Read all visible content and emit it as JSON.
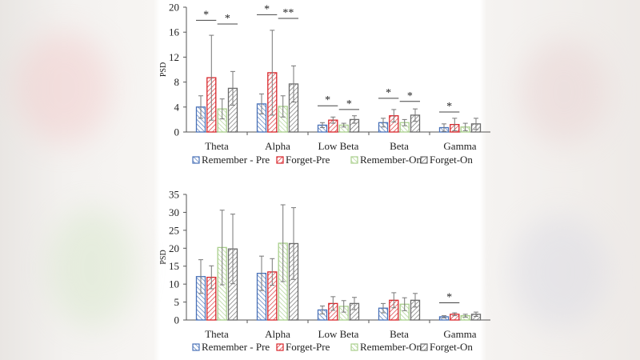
{
  "colors": {
    "Remember - Pre": "#4a72b8",
    "Forget-Pre": "#d8262b",
    "Remember-On": "#a9cf8c",
    "Forget-On": "#6b6b6b",
    "axis": "#555555",
    "error_bar": "#777777"
  },
  "chart_data": [
    {
      "type": "bar",
      "ylabel": "PSD",
      "ylim": [
        0,
        20
      ],
      "yticks": [
        0,
        4,
        8,
        12,
        16,
        20
      ],
      "categories": [
        "Theta",
        "Alpha",
        "Low Beta",
        "Beta",
        "Gamma"
      ],
      "legend": "bottom",
      "series": [
        {
          "name": "Remember - Pre",
          "values": [
            4.0,
            4.5,
            1.1,
            1.5,
            0.7
          ],
          "errors": [
            1.8,
            1.6,
            0.4,
            0.7,
            0.6
          ]
        },
        {
          "name": "Forget-Pre",
          "values": [
            8.7,
            9.5,
            1.9,
            2.6,
            1.2
          ],
          "errors": [
            6.8,
            6.8,
            0.5,
            1.0,
            1.0
          ]
        },
        {
          "name": "Remember-On",
          "values": [
            3.7,
            4.1,
            1.1,
            1.5,
            0.8
          ],
          "errors": [
            1.6,
            1.7,
            0.3,
            0.5,
            0.6
          ]
        },
        {
          "name": "Forget-On",
          "values": [
            7.0,
            7.7,
            2.0,
            2.7,
            1.3
          ],
          "errors": [
            2.7,
            2.9,
            0.6,
            1.0,
            0.9
          ]
        }
      ],
      "significance": [
        {
          "category": "Theta",
          "between": [
            "Remember - Pre",
            "Forget-Pre"
          ],
          "label": "*",
          "level": 17.9
        },
        {
          "category": "Theta",
          "between": [
            "Remember-On",
            "Forget-On"
          ],
          "label": "*",
          "level": 17.3
        },
        {
          "category": "Alpha",
          "between": [
            "Remember - Pre",
            "Forget-Pre"
          ],
          "label": "*",
          "level": 18.8
        },
        {
          "category": "Alpha",
          "between": [
            "Remember-On",
            "Forget-On"
          ],
          "label": "**",
          "level": 18.2
        },
        {
          "category": "Low Beta",
          "between": [
            "Remember - Pre",
            "Forget-Pre"
          ],
          "label": "*",
          "level": 4.2
        },
        {
          "category": "Low Beta",
          "between": [
            "Remember-On",
            "Forget-On"
          ],
          "label": "*",
          "level": 3.6
        },
        {
          "category": "Beta",
          "between": [
            "Remember - Pre",
            "Forget-Pre"
          ],
          "label": "*",
          "level": 5.4
        },
        {
          "category": "Beta",
          "between": [
            "Remember-On",
            "Forget-On"
          ],
          "label": "*",
          "level": 4.9
        },
        {
          "category": "Gamma",
          "between": [
            "Remember - Pre",
            "Forget-Pre"
          ],
          "label": "*",
          "level": 3.2
        }
      ]
    },
    {
      "type": "bar",
      "ylabel": "PSD",
      "ylim": [
        0,
        35
      ],
      "yticks": [
        0,
        5,
        10,
        15,
        20,
        25,
        30,
        35
      ],
      "categories": [
        "Theta",
        "Alpha",
        "Low Beta",
        "Beta",
        "Gamma"
      ],
      "legend": "bottom",
      "series": [
        {
          "name": "Remember - Pre",
          "values": [
            12.1,
            13.0,
            2.8,
            3.3,
            0.9
          ],
          "errors": [
            4.7,
            4.8,
            1.1,
            1.3,
            0.3
          ]
        },
        {
          "name": "Forget-Pre",
          "values": [
            11.9,
            13.4,
            4.6,
            5.5,
            1.6
          ],
          "errors": [
            3.2,
            3.7,
            1.9,
            2.1,
            0.4
          ]
        },
        {
          "name": "Remember-On",
          "values": [
            20.2,
            21.4,
            3.8,
            4.4,
            1.2
          ],
          "errors": [
            10.4,
            10.7,
            1.6,
            1.8,
            0.4
          ]
        },
        {
          "name": "Forget-On",
          "values": [
            19.8,
            21.3,
            4.6,
            5.5,
            1.6
          ],
          "errors": [
            9.7,
            10.0,
            1.7,
            1.9,
            0.6
          ]
        }
      ],
      "significance": [
        {
          "category": "Gamma",
          "between": [
            "Remember - Pre",
            "Forget-Pre"
          ],
          "label": "*",
          "level": 4.8
        }
      ]
    }
  ]
}
